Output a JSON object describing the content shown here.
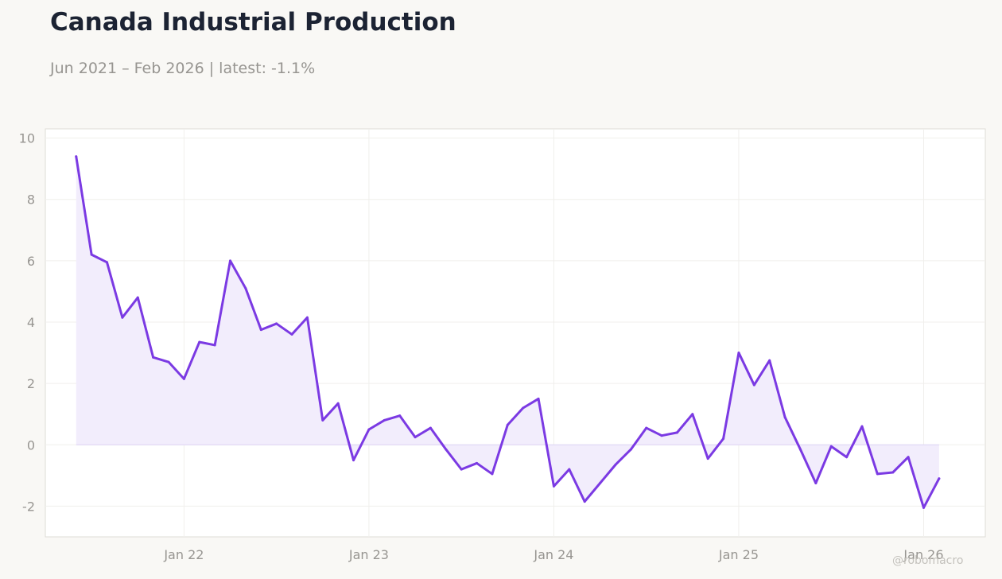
{
  "title": "Canada Industrial Production",
  "subtitle": "Jun 2021 – Feb 2026 | latest: -1.1%",
  "watermark": "@robomacro",
  "colors": {
    "line": "#7b3ae3",
    "fill": "#f2edfc",
    "background": "#f9f8f5",
    "plot_background": "#ffffff"
  },
  "chart_data": {
    "type": "line",
    "title": "Canada Industrial Production",
    "subtitle": "Jun 2021 – Feb 2026 | latest: -1.1%",
    "xlabel": "",
    "ylabel": "",
    "ylim": [
      -3,
      10.3
    ],
    "xlim": [
      "2021-04",
      "2026-05"
    ],
    "x_ticks": [
      {
        "label": "Jan 22",
        "date": "2022-01"
      },
      {
        "label": "Jan 23",
        "date": "2023-01"
      },
      {
        "label": "Jan 24",
        "date": "2024-01"
      },
      {
        "label": "Jan 25",
        "date": "2025-01"
      },
      {
        "label": "Jan 26",
        "date": "2026-01"
      }
    ],
    "y_ticks": [
      -2,
      0,
      2,
      4,
      6,
      8,
      10
    ],
    "grid": true,
    "area_fill_to_zero": true,
    "x": [
      "2021-06",
      "2021-07",
      "2021-08",
      "2021-09",
      "2021-10",
      "2021-11",
      "2021-12",
      "2022-01",
      "2022-02",
      "2022-03",
      "2022-04",
      "2022-05",
      "2022-06",
      "2022-07",
      "2022-08",
      "2022-09",
      "2022-10",
      "2022-11",
      "2022-12",
      "2023-01",
      "2023-02",
      "2023-03",
      "2023-04",
      "2023-05",
      "2023-06",
      "2023-07",
      "2023-08",
      "2023-09",
      "2023-10",
      "2023-11",
      "2023-12",
      "2024-01",
      "2024-02",
      "2024-03",
      "2024-04",
      "2024-05",
      "2024-06",
      "2024-07",
      "2024-08",
      "2024-09",
      "2024-10",
      "2024-11",
      "2024-12",
      "2025-01",
      "2025-02",
      "2025-03",
      "2025-04",
      "2025-05",
      "2025-06",
      "2025-07",
      "2025-08",
      "2025-09",
      "2025-10",
      "2025-11",
      "2025-12",
      "2026-01",
      "2026-02"
    ],
    "series": [
      {
        "values": [
          9.4,
          6.2,
          5.95,
          4.15,
          4.8,
          2.85,
          2.7,
          2.15,
          3.35,
          3.25,
          6.0,
          5.1,
          3.75,
          3.95,
          3.6,
          4.15,
          0.8,
          1.35,
          -0.5,
          0.5,
          0.8,
          0.95,
          0.25,
          0.55,
          -0.15,
          -0.8,
          -0.6,
          -0.95,
          0.65,
          1.2,
          1.5,
          -1.35,
          -0.8,
          -1.85,
          -1.25,
          -0.65,
          -0.15,
          0.55,
          0.3,
          0.4,
          1.0,
          -0.45,
          0.2,
          3.0,
          1.95,
          2.75,
          0.9,
          -0.15,
          -1.25,
          -0.05,
          -0.4,
          0.6,
          -0.95,
          -0.9,
          -0.4,
          -2.05,
          -1.1
        ]
      }
    ]
  }
}
